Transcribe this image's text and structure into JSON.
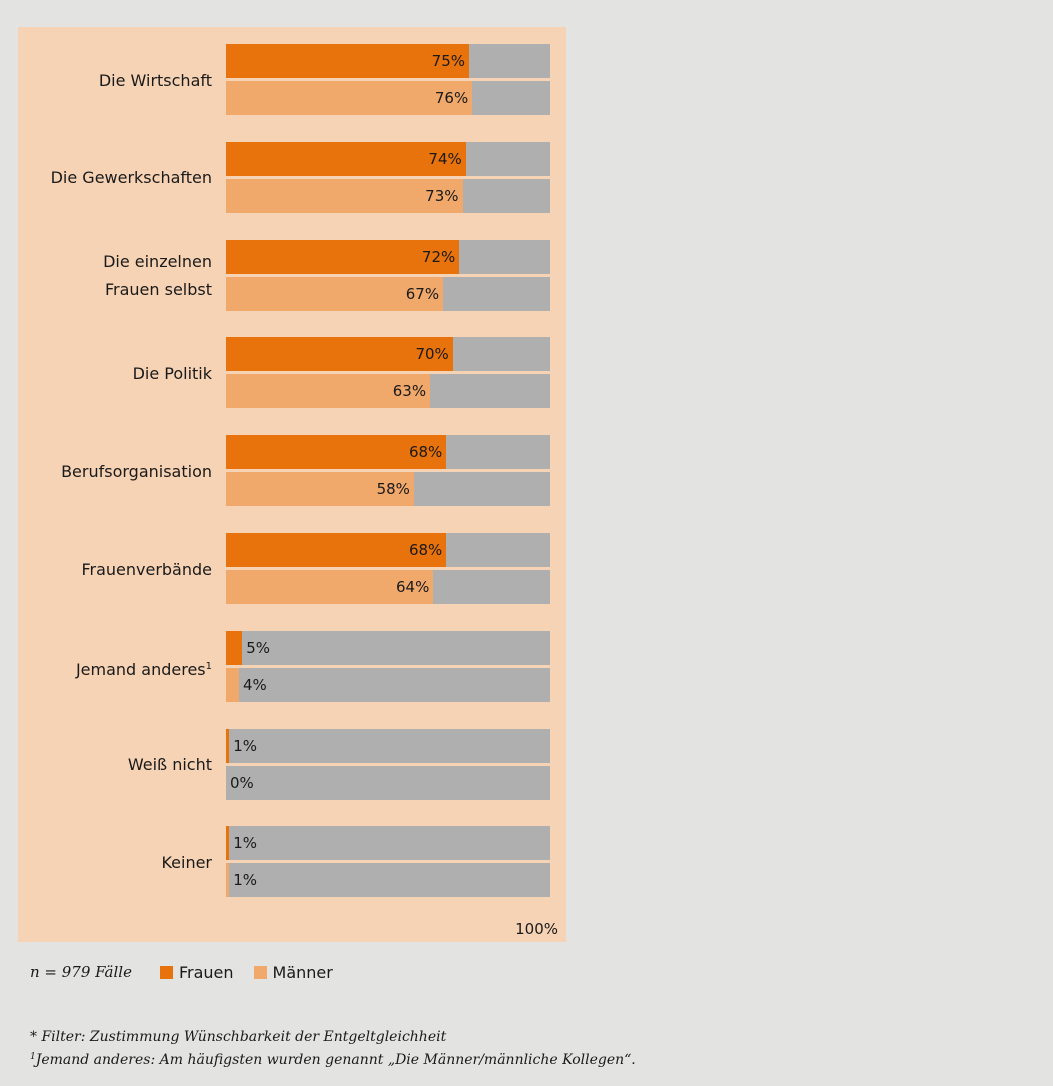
{
  "chart_data": {
    "type": "bar",
    "orientation": "horizontal",
    "categories": [
      "Die Wirtschaft",
      "Die Gewerkschaften",
      "Die einzelnen Frauen selbst",
      "Die Politik",
      "Berufsorganisation",
      "Frauenverbände",
      "Jemand anderes",
      "Weiß nicht",
      "Keiner"
    ],
    "category_label_lines": [
      [
        "Die Wirtschaft"
      ],
      [
        "Die Gewerkschaften"
      ],
      [
        "Die einzelnen",
        "Frauen selbst"
      ],
      [
        "Die Politik"
      ],
      [
        "Berufsorganisation"
      ],
      [
        "Frauenverbände"
      ],
      [
        "Jemand anderes"
      ],
      [
        "Weiß nicht"
      ],
      [
        "Keiner"
      ]
    ],
    "category_superscripts": [
      "",
      "",
      "",
      "",
      "",
      "",
      "1",
      "",
      ""
    ],
    "series": [
      {
        "name": "Frauen",
        "color": "#e8720c",
        "values": [
          75,
          74,
          72,
          70,
          68,
          68,
          5,
          1,
          1
        ]
      },
      {
        "name": "Männer",
        "color": "#f0a86b",
        "values": [
          76,
          73,
          67,
          63,
          58,
          64,
          4,
          0,
          1
        ]
      }
    ],
    "value_labels": [
      [
        "75%",
        "74%",
        "72%",
        "70%",
        "68%",
        "68%",
        "5%",
        "1%",
        "1%"
      ],
      [
        "76%",
        "73%",
        "67%",
        "63%",
        "58%",
        "64%",
        "4%",
        "0%",
        "1%"
      ]
    ],
    "xlim": [
      0,
      100
    ],
    "scale_max_label": "100%",
    "remainder_color": "#b0afaf",
    "panel_color": "#f7d3b5",
    "legend_position": "bottom-left"
  },
  "legend": {
    "sample_size": "n = 979 Fälle",
    "items": [
      {
        "label": "Frauen",
        "color": "#e8720c"
      },
      {
        "label": "Männer",
        "color": "#f0a86b"
      }
    ]
  },
  "footnotes": {
    "filter": "* Filter: Zustimmung Wünschbarkeit der Entgeltgleichheit",
    "note_marker": "1",
    "note_text": "Jemand anderes: Am häufigsten wurden genannt „Die Männer/männliche Kollegen“."
  }
}
